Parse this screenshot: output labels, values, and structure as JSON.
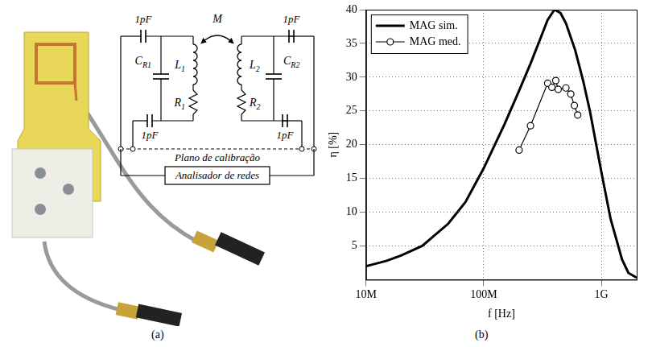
{
  "panel_a": {
    "label": "(a)",
    "diagram": {
      "series_capacitors": [
        "1pF",
        "1pF",
        "1pF",
        "1pF"
      ],
      "resonator_capacitors": [
        {
          "base": "C",
          "sub": "R1"
        },
        {
          "base": "C",
          "sub": "R2"
        }
      ],
      "inductors": [
        {
          "base": "L",
          "sub": "1"
        },
        {
          "base": "L",
          "sub": "2"
        }
      ],
      "resistors": [
        {
          "base": "R",
          "sub": "1"
        },
        {
          "base": "R",
          "sub": "2"
        }
      ],
      "mutual": "M",
      "plane": "Plano de calibração",
      "instrument": "Analisador de redes"
    }
  },
  "panel_b_label": "(b)",
  "chart_data": {
    "type": "line",
    "x_label": "f [Hz]",
    "y_label": "η [%]",
    "log": "x",
    "grid": true,
    "legend": "upper left",
    "xlim": [
      10000000,
      2000000000
    ],
    "xticks": [
      {
        "value": 10000000,
        "label": "10M"
      },
      {
        "value": 100000000,
        "label": "100M"
      },
      {
        "value": 1000000000,
        "label": "1G"
      }
    ],
    "ylim": [
      0,
      40
    ],
    "yticks": [
      5,
      10,
      15,
      20,
      25,
      30,
      35,
      40
    ],
    "series": [
      {
        "name": "MAG sim.",
        "color": "#000000",
        "marker": "none",
        "line_style": "solid",
        "x": [
          10000000,
          15000000,
          20000000,
          30000000,
          50000000,
          70000000,
          100000000,
          150000000,
          200000000,
          250000000,
          300000000,
          350000000,
          400000000,
          450000000,
          500000000,
          600000000,
          700000000,
          800000000,
          1000000000,
          1200000000,
          1500000000,
          1700000000,
          2000000000
        ],
        "values": [
          2,
          2.8,
          3.6,
          5,
          8.3,
          11.5,
          16.5,
          23,
          28,
          32,
          35.5,
          38.5,
          40,
          39.5,
          38,
          34,
          29.5,
          25,
          16,
          9,
          3,
          1,
          0.3
        ]
      },
      {
        "name": "MAG med.",
        "color": "#000000",
        "marker": "circle",
        "line_style": "solid",
        "x": [
          200000000,
          250000000,
          350000000,
          380000000,
          410000000,
          430000000,
          500000000,
          550000000,
          590000000,
          630000000
        ],
        "values": [
          19.2,
          22.8,
          29.1,
          28.5,
          29.5,
          28.2,
          28.4,
          27.5,
          25.8,
          24.4
        ]
      }
    ]
  }
}
